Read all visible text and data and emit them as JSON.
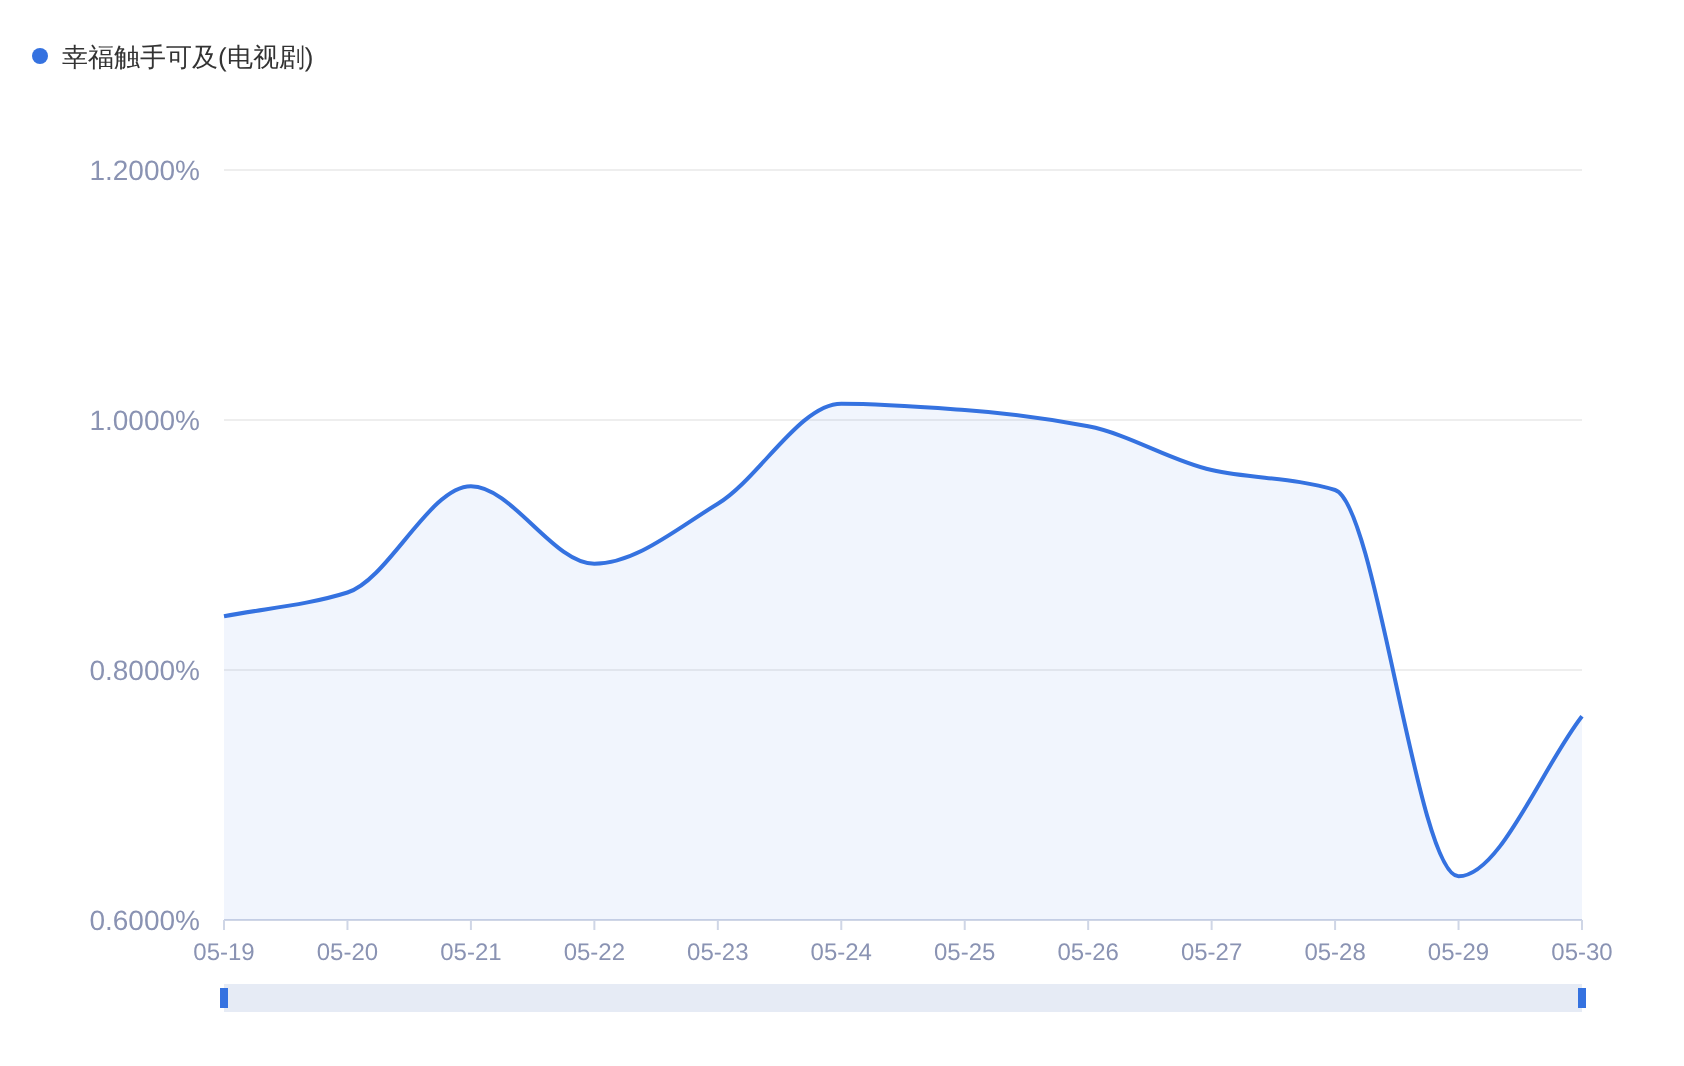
{
  "chart_data": {
    "type": "area",
    "categories": [
      "05-19",
      "05-20",
      "05-21",
      "05-22",
      "05-23",
      "05-24",
      "05-25",
      "05-26",
      "05-27",
      "05-28",
      "05-29",
      "05-30"
    ],
    "series": [
      {
        "name": "幸福触手可及(电视剧)",
        "color": "#3572e0",
        "values": [
          0.843,
          0.862,
          0.947,
          0.885,
          0.933,
          1.013,
          1.008,
          0.995,
          0.96,
          0.944,
          0.635,
          0.763
        ]
      }
    ],
    "ylim": [
      0.6,
      1.2
    ],
    "yticks": [
      {
        "value": 0.6,
        "label": "0.6000%"
      },
      {
        "value": 0.8,
        "label": "0.8000%"
      },
      {
        "value": 1.0,
        "label": "1.0000%"
      },
      {
        "value": 1.2,
        "label": "1.2000%"
      }
    ],
    "grid": "y",
    "legend": "top left"
  }
}
